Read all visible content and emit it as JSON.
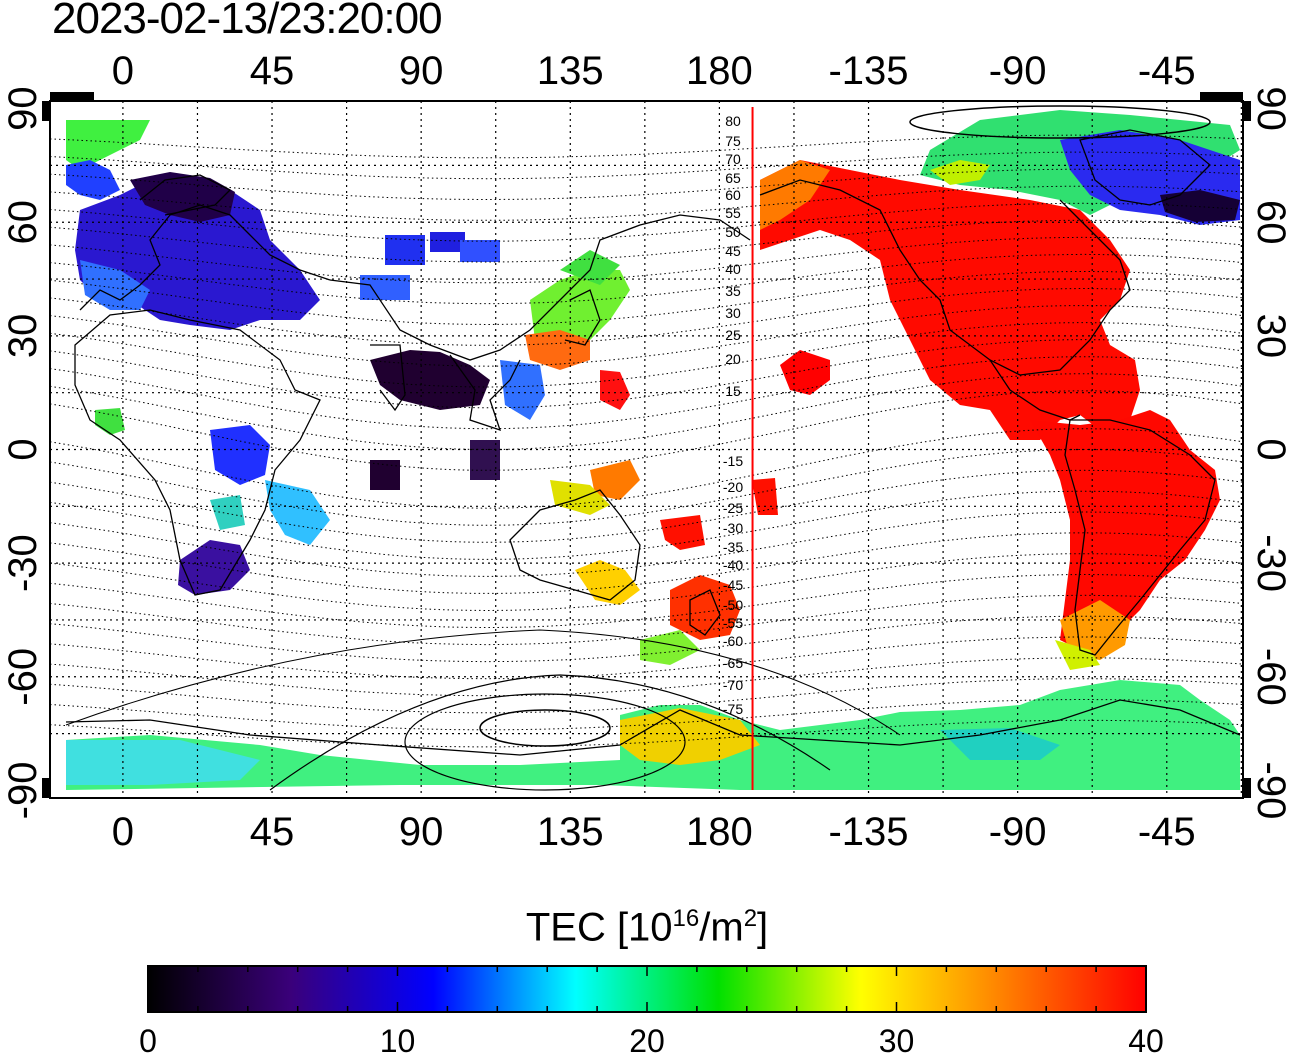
{
  "timestamp": "2023-02-13/23:20:00",
  "map": {
    "lon_ticks_top": [
      "0",
      "45",
      "90",
      "135",
      "180",
      "-135",
      "-90",
      "-45"
    ],
    "lon_ticks_bottom": [
      "0",
      "45",
      "90",
      "135",
      "180",
      "-135",
      "-90",
      "-45"
    ],
    "lat_ticks_left": [
      "90",
      "60",
      "30",
      "0",
      "-30",
      "-60",
      "-90"
    ],
    "lat_ticks_right": [
      "90",
      "60",
      "30",
      "0",
      "-30",
      "-60",
      "-90"
    ],
    "lon_values": [
      0,
      45,
      90,
      135,
      180,
      225,
      270,
      315
    ],
    "lat_values": [
      90,
      60,
      30,
      0,
      -30,
      -60,
      -90
    ],
    "contour_labels_north": [
      "80",
      "75",
      "70",
      "65",
      "60",
      "55",
      "50",
      "45",
      "40",
      "35",
      "30",
      "25",
      "20",
      "15"
    ],
    "contour_labels_south": [
      "-15",
      "-20",
      "-25",
      "-30",
      "-35",
      "-40",
      "-45",
      "-50",
      "-55",
      "-60",
      "-65",
      "-70",
      "-75"
    ],
    "terminator_line_lon": 190,
    "terminator_color": "#ff0000"
  },
  "colorbar": {
    "title_main": "TEC  [10",
    "title_exp": "16",
    "title_unit": "/m",
    "title_unit_exp": "2",
    "title_close": "]",
    "tick_labels": [
      "0",
      "10",
      "20",
      "30",
      "40"
    ],
    "min": 0,
    "max": 40,
    "colors": [
      "#000000",
      "#3a007a",
      "#0000ff",
      "#00ffff",
      "#00e000",
      "#ffff00",
      "#ff8000",
      "#ff0000"
    ]
  },
  "tec_regions": [
    {
      "name": "north-america",
      "tec": 39,
      "color": "#ff0000"
    },
    {
      "name": "south-america",
      "tec": 39,
      "color": "#ff0000"
    },
    {
      "name": "arctic-canada",
      "tec": 20,
      "color": "#00d890"
    },
    {
      "name": "greenland-atlantic",
      "tec": 8,
      "color": "#2020ff"
    },
    {
      "name": "europe",
      "tec": 6,
      "color": "#2a1ad8"
    },
    {
      "name": "scandinavia",
      "tec": 2,
      "color": "#200040"
    },
    {
      "name": "japan",
      "tec": 26,
      "color": "#60f020"
    },
    {
      "name": "new-zealand",
      "tec": 36,
      "color": "#ff3000"
    },
    {
      "name": "australia-south",
      "tec": 30,
      "color": "#ffe000"
    },
    {
      "name": "south-africa",
      "tec": 5,
      "color": "#3a10a0"
    },
    {
      "name": "antarctica",
      "tec": 22,
      "color": "#40f060"
    },
    {
      "name": "south-asia",
      "tec": 1,
      "color": "#1a0020"
    }
  ]
}
